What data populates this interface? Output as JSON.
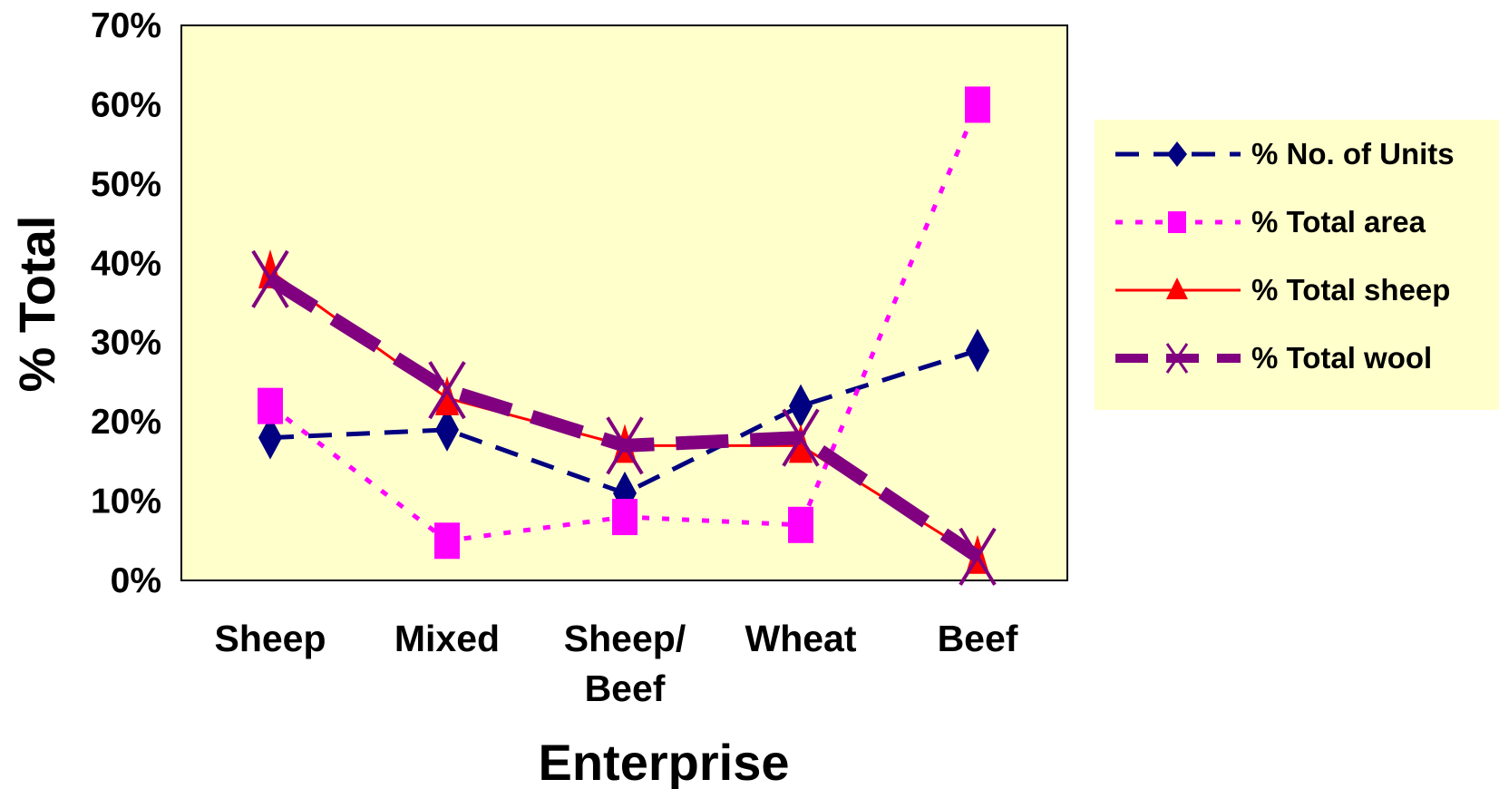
{
  "chart_data": {
    "type": "line",
    "categories": [
      [
        "Sheep"
      ],
      [
        "Mixed"
      ],
      [
        "Sheep/",
        "Beef"
      ],
      [
        "Wheat"
      ],
      [
        "Beef"
      ]
    ],
    "xlabel": "Enterprise",
    "ylabel": "% Total",
    "ylim": [
      0,
      70
    ],
    "yticks": [
      "0%",
      "10%",
      "20%",
      "30%",
      "40%",
      "50%",
      "60%",
      "70%"
    ],
    "grid": false,
    "legend_position": "right",
    "plot_background": "#FFFFCC",
    "legend_background": "#FFFFCC",
    "series": [
      {
        "name": "% No. of Units",
        "values": [
          18,
          19,
          11,
          22,
          29
        ],
        "color": "#000080",
        "line": "dashed",
        "marker": "diamond"
      },
      {
        "name": "% Total area",
        "values": [
          22,
          5,
          8,
          7,
          60
        ],
        "color": "#FF00FF",
        "line": "dotted",
        "marker": "square"
      },
      {
        "name": "% Total sheep",
        "values": [
          39,
          23,
          17,
          17,
          3
        ],
        "color": "#FF0000",
        "line": "solid",
        "marker": "triangle"
      },
      {
        "name": "% Total wool",
        "values": [
          38,
          24,
          17,
          18,
          3
        ],
        "color": "#800080",
        "line": "thick-dashed",
        "marker": "x"
      }
    ]
  }
}
